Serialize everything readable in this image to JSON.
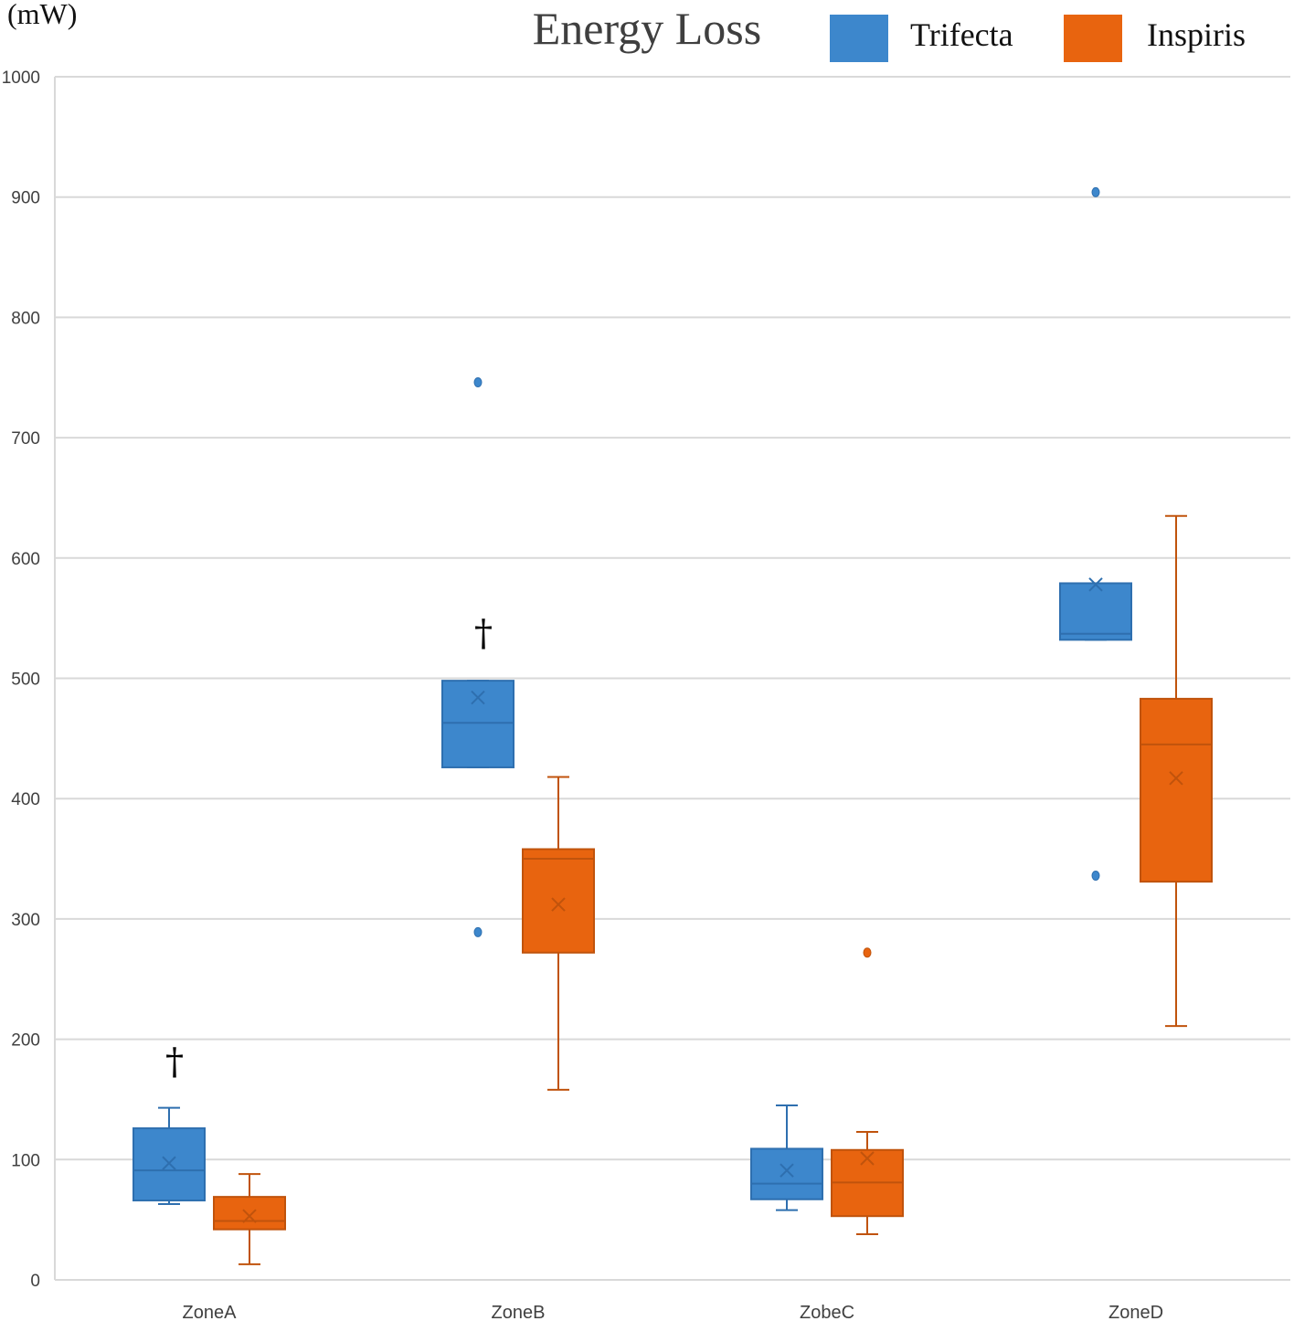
{
  "chart_data": {
    "type": "box",
    "title": "Energy Loss",
    "ylabel": "(mW)",
    "xlabel": "",
    "ylim": [
      0,
      1000
    ],
    "yticks": [
      0,
      100,
      200,
      300,
      400,
      500,
      600,
      700,
      800,
      900,
      1000
    ],
    "grid": true,
    "legend_position": "top-right",
    "categories": [
      "ZoneA",
      "ZoneB",
      "ZobeC",
      "ZoneD"
    ],
    "series": [
      {
        "name": "Trifecta",
        "color": "#3d87cc",
        "stroke": "#2e6faf",
        "boxes": [
          {
            "whisker_low": 63,
            "q1": 66,
            "median": 91,
            "q3": 126,
            "whisker_high": 143,
            "mean": 97,
            "outliers": []
          },
          {
            "whisker_low": 426,
            "q1": 426,
            "median": 463,
            "q3": 498,
            "whisker_high": 498,
            "mean": 484,
            "outliers": [
              289,
              746
            ]
          },
          {
            "whisker_low": 58,
            "q1": 67,
            "median": 80,
            "q3": 109,
            "whisker_high": 145,
            "mean": 91,
            "outliers": []
          },
          {
            "whisker_low": 532,
            "q1": 532,
            "median": 537,
            "q3": 579,
            "whisker_high": 579,
            "mean": 578,
            "outliers": [
              336,
              904
            ]
          }
        ]
      },
      {
        "name": "Inspiris",
        "color": "#e8640f",
        "stroke": "#c0530c",
        "boxes": [
          {
            "whisker_low": 13,
            "q1": 42,
            "median": 49,
            "q3": 69,
            "whisker_high": 88,
            "mean": 53,
            "outliers": []
          },
          {
            "whisker_low": 158,
            "q1": 272,
            "median": 350,
            "q3": 358,
            "whisker_high": 418,
            "mean": 312,
            "outliers": []
          },
          {
            "whisker_low": 38,
            "q1": 53,
            "median": 81,
            "q3": 108,
            "whisker_high": 123,
            "mean": 101,
            "outliers": [
              272
            ]
          },
          {
            "whisker_low": 211,
            "q1": 331,
            "median": 445,
            "q3": 483,
            "whisker_high": 635,
            "mean": 417,
            "outliers": []
          }
        ]
      }
    ],
    "annotations": [
      {
        "text": "†",
        "category": "ZoneA",
        "y": 182
      },
      {
        "text": "†",
        "category": "ZoneB",
        "y": 538
      }
    ]
  }
}
